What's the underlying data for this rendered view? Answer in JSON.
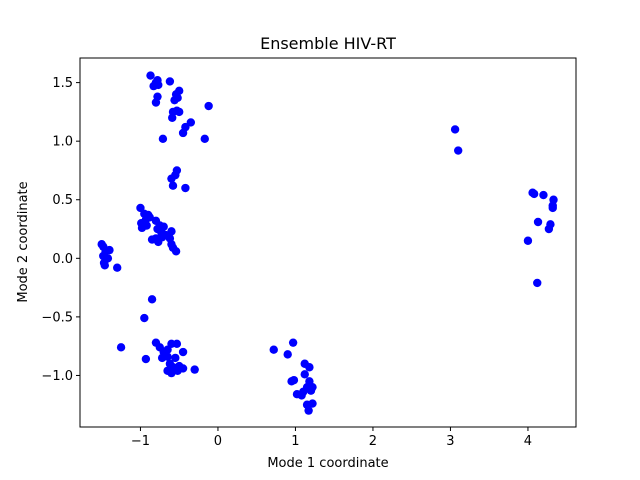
{
  "chart_data": {
    "type": "scatter",
    "title": "Ensemble HIV-RT",
    "xlabel": "Mode 1 coordinate",
    "ylabel": "Mode 2 coordinate",
    "xlim": [
      -1.78,
      4.62
    ],
    "ylim": [
      -1.44,
      1.71
    ],
    "xticks": [
      -1,
      0,
      1,
      2,
      3,
      4
    ],
    "xtick_labels": [
      "−1",
      "0",
      "1",
      "2",
      "3",
      "4"
    ],
    "yticks": [
      -1.0,
      -0.5,
      0.0,
      0.5,
      1.0,
      1.5
    ],
    "ytick_labels": [
      "−1.0",
      "−0.5",
      "0.0",
      "0.5",
      "1.0",
      "1.5"
    ],
    "grid": false,
    "marker_color": "#0000ff",
    "series": [
      {
        "points": [
          [
            -0.87,
            1.56
          ],
          [
            -0.78,
            1.52
          ],
          [
            -0.8,
            1.5
          ],
          [
            -0.62,
            1.51
          ],
          [
            -0.83,
            1.47
          ],
          [
            -0.77,
            1.48
          ],
          [
            -0.5,
            1.43
          ],
          [
            -0.54,
            1.4
          ],
          [
            -0.78,
            1.38
          ],
          [
            -0.52,
            1.37
          ],
          [
            -0.56,
            1.35
          ],
          [
            -0.8,
            1.33
          ],
          [
            -0.12,
            1.3
          ],
          [
            -0.53,
            1.26
          ],
          [
            -0.58,
            1.25
          ],
          [
            -0.5,
            1.25
          ],
          [
            -0.59,
            1.2
          ],
          [
            -0.35,
            1.16
          ],
          [
            -0.42,
            1.12
          ],
          [
            -0.45,
            1.07
          ],
          [
            -0.71,
            1.02
          ],
          [
            -0.17,
            1.02
          ],
          [
            -0.53,
            0.75
          ],
          [
            -0.6,
            0.68
          ],
          [
            -0.55,
            0.71
          ],
          [
            -0.58,
            0.62
          ],
          [
            -0.42,
            0.6
          ],
          [
            -1.0,
            0.43
          ],
          [
            -0.95,
            0.38
          ],
          [
            -0.9,
            0.37
          ],
          [
            -0.93,
            0.33
          ],
          [
            -0.88,
            0.35
          ],
          [
            -0.99,
            0.3
          ],
          [
            -0.8,
            0.32
          ],
          [
            -0.92,
            0.28
          ],
          [
            -0.98,
            0.26
          ],
          [
            -0.75,
            0.28
          ],
          [
            -0.7,
            0.27
          ],
          [
            -0.78,
            0.25
          ],
          [
            -0.73,
            0.22
          ],
          [
            -0.6,
            0.23
          ],
          [
            -0.68,
            0.2
          ],
          [
            -0.72,
            0.18
          ],
          [
            -0.8,
            0.17
          ],
          [
            -0.85,
            0.16
          ],
          [
            -0.77,
            0.14
          ],
          [
            -0.62,
            0.17
          ],
          [
            -0.6,
            0.12
          ],
          [
            -0.58,
            0.09
          ],
          [
            -0.54,
            0.06
          ],
          [
            -1.5,
            0.12
          ],
          [
            -1.48,
            0.1
          ],
          [
            -1.45,
            0.06
          ],
          [
            -1.4,
            0.07
          ],
          [
            -1.48,
            0.02
          ],
          [
            -1.45,
            -0.01
          ],
          [
            -1.42,
            0.0
          ],
          [
            -1.47,
            -0.04
          ],
          [
            -1.46,
            -0.06
          ],
          [
            -1.3,
            -0.08
          ],
          [
            -0.85,
            -0.35
          ],
          [
            -0.95,
            -0.51
          ],
          [
            -1.25,
            -0.76
          ],
          [
            -0.8,
            -0.72
          ],
          [
            -0.6,
            -0.73
          ],
          [
            -0.53,
            -0.73
          ],
          [
            -0.75,
            -0.76
          ],
          [
            -0.65,
            -0.78
          ],
          [
            -0.7,
            -0.8
          ],
          [
            -0.45,
            -0.8
          ],
          [
            -0.93,
            -0.86
          ],
          [
            -0.72,
            -0.85
          ],
          [
            -0.65,
            -0.84
          ],
          [
            -0.55,
            -0.85
          ],
          [
            -0.62,
            -0.9
          ],
          [
            -0.58,
            -0.93
          ],
          [
            -0.5,
            -0.92
          ],
          [
            -0.45,
            -0.94
          ],
          [
            -0.52,
            -0.96
          ],
          [
            -0.65,
            -0.96
          ],
          [
            -0.3,
            -0.95
          ],
          [
            -0.6,
            -0.98
          ],
          [
            0.72,
            -0.78
          ],
          [
            0.97,
            -0.72
          ],
          [
            0.9,
            -0.82
          ],
          [
            1.12,
            -0.9
          ],
          [
            1.18,
            -0.93
          ],
          [
            1.12,
            -0.99
          ],
          [
            0.95,
            -1.05
          ],
          [
            0.98,
            -1.04
          ],
          [
            1.18,
            -1.05
          ],
          [
            1.15,
            -1.1
          ],
          [
            1.22,
            -1.1
          ],
          [
            1.1,
            -1.14
          ],
          [
            1.2,
            -1.13
          ],
          [
            1.02,
            -1.16
          ],
          [
            1.08,
            -1.17
          ],
          [
            1.22,
            -1.24
          ],
          [
            1.15,
            -1.25
          ],
          [
            1.17,
            -1.3
          ],
          [
            3.06,
            1.1
          ],
          [
            3.1,
            0.92
          ],
          [
            4.06,
            0.56
          ],
          [
            4.08,
            0.55
          ],
          [
            4.2,
            0.54
          ],
          [
            4.33,
            0.5
          ],
          [
            4.32,
            0.43
          ],
          [
            4.32,
            0.45
          ],
          [
            4.13,
            0.31
          ],
          [
            4.29,
            0.29
          ],
          [
            4.27,
            0.25
          ],
          [
            4.0,
            0.15
          ],
          [
            4.12,
            -0.21
          ]
        ]
      }
    ]
  }
}
